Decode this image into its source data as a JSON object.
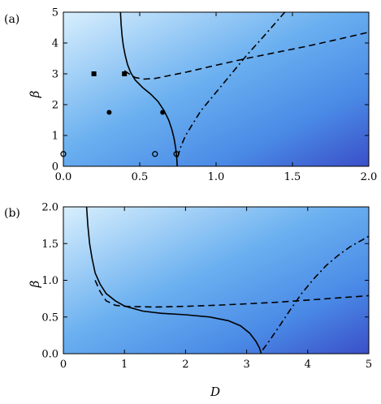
{
  "chart_data": [
    {
      "panel": "(a)",
      "type": "line",
      "xlabel": "",
      "ylabel": "β",
      "xlim": [
        0,
        2.0
      ],
      "ylim": [
        0,
        5
      ],
      "xticks": [
        "0.0",
        "0.5",
        "1.0",
        "1.5",
        "2.0"
      ],
      "yticks": [
        "0",
        "1",
        "2",
        "3",
        "4",
        "5"
      ],
      "background": "gradient light sky-blue (top-left) to dark blue (bottom-right)",
      "colors": {
        "light": "#d6eefd",
        "mid": "#4a96e8",
        "dark": "#3a4fc8"
      },
      "series": [
        {
          "style": "solid",
          "points": [
            [
              0.374,
              5
            ],
            [
              0.378,
              4.6
            ],
            [
              0.385,
              4.2
            ],
            [
              0.393,
              3.9
            ],
            [
              0.405,
              3.6
            ],
            [
              0.42,
              3.3
            ],
            [
              0.44,
              3.05
            ],
            [
              0.47,
              2.8
            ],
            [
              0.52,
              2.55
            ],
            [
              0.57,
              2.35
            ],
            [
              0.62,
              2.1
            ],
            [
              0.66,
              1.8
            ],
            [
              0.69,
              1.5
            ],
            [
              0.71,
              1.2
            ],
            [
              0.725,
              0.9
            ],
            [
              0.735,
              0.6
            ],
            [
              0.742,
              0.3
            ],
            [
              0.746,
              0
            ]
          ]
        },
        {
          "style": "dashed",
          "points": [
            [
              0.4,
              3.1
            ],
            [
              0.43,
              3.0
            ],
            [
              0.47,
              2.88
            ],
            [
              0.53,
              2.83
            ],
            [
              0.6,
              2.85
            ],
            [
              0.7,
              2.95
            ],
            [
              0.8,
              3.05
            ],
            [
              1.0,
              3.28
            ],
            [
              1.2,
              3.5
            ],
            [
              1.4,
              3.7
            ],
            [
              1.6,
              3.9
            ],
            [
              1.8,
              4.12
            ],
            [
              2.0,
              4.35
            ]
          ]
        },
        {
          "style": "dashdot",
          "points": [
            [
              0.748,
              0.3
            ],
            [
              0.77,
              0.65
            ],
            [
              0.8,
              1.0
            ],
            [
              0.85,
              1.4
            ],
            [
              0.9,
              1.8
            ],
            [
              1.0,
              2.4
            ],
            [
              1.1,
              3.0
            ],
            [
              1.2,
              3.6
            ],
            [
              1.3,
              4.15
            ],
            [
              1.38,
              4.6
            ],
            [
              1.45,
              5.0
            ]
          ]
        }
      ],
      "markers": [
        {
          "shape": "filled-square",
          "x": 0.2,
          "y": 3.0
        },
        {
          "shape": "filled-square",
          "x": 0.4,
          "y": 3.0
        },
        {
          "shape": "filled-circle",
          "x": 0.3,
          "y": 1.75
        },
        {
          "shape": "filled-circle",
          "x": 0.65,
          "y": 1.75
        },
        {
          "shape": "open-circle",
          "x": 0.0,
          "y": 0.4
        },
        {
          "shape": "open-circle",
          "x": 0.6,
          "y": 0.4
        },
        {
          "shape": "open-circle",
          "x": 0.74,
          "y": 0.4
        }
      ]
    },
    {
      "panel": "(b)",
      "type": "line",
      "xlabel": "D",
      "ylabel": "β",
      "xlim": [
        0,
        5
      ],
      "ylim": [
        0,
        2.0
      ],
      "xticks": [
        "0",
        "1",
        "2",
        "3",
        "4",
        "5"
      ],
      "yticks": [
        "0.0",
        "0.5",
        "1.0",
        "1.5",
        "2.0"
      ],
      "background": "gradient light sky-blue (top-left) to dark blue (bottom-right)",
      "colors": {
        "light": "#d6eefd",
        "mid": "#4a96e8",
        "dark": "#3a4fc8"
      },
      "series": [
        {
          "style": "solid",
          "points": [
            [
              0.38,
              2.0
            ],
            [
              0.4,
              1.75
            ],
            [
              0.43,
              1.5
            ],
            [
              0.47,
              1.3
            ],
            [
              0.52,
              1.1
            ],
            [
              0.6,
              0.95
            ],
            [
              0.7,
              0.82
            ],
            [
              0.85,
              0.72
            ],
            [
              1.0,
              0.65
            ],
            [
              1.3,
              0.58
            ],
            [
              1.6,
              0.55
            ],
            [
              2.0,
              0.53
            ],
            [
              2.4,
              0.5
            ],
            [
              2.7,
              0.45
            ],
            [
              2.9,
              0.38
            ],
            [
              3.05,
              0.28
            ],
            [
              3.15,
              0.17
            ],
            [
              3.21,
              0.08
            ],
            [
              3.24,
              0.0
            ]
          ]
        },
        {
          "style": "dashed",
          "points": [
            [
              0.52,
              1.0
            ],
            [
              0.6,
              0.85
            ],
            [
              0.7,
              0.72
            ],
            [
              0.85,
              0.66
            ],
            [
              1.0,
              0.645
            ],
            [
              1.5,
              0.635
            ],
            [
              2.0,
              0.645
            ],
            [
              2.5,
              0.66
            ],
            [
              3.0,
              0.68
            ],
            [
              3.5,
              0.7
            ],
            [
              4.0,
              0.73
            ],
            [
              4.5,
              0.76
            ],
            [
              5.0,
              0.79
            ]
          ]
        },
        {
          "style": "dashdot",
          "points": [
            [
              3.26,
              0.05
            ],
            [
              3.35,
              0.15
            ],
            [
              3.5,
              0.33
            ],
            [
              3.7,
              0.58
            ],
            [
              3.9,
              0.82
            ],
            [
              4.1,
              1.02
            ],
            [
              4.3,
              1.2
            ],
            [
              4.5,
              1.34
            ],
            [
              4.7,
              1.46
            ],
            [
              5.0,
              1.6
            ]
          ]
        }
      ]
    }
  ]
}
